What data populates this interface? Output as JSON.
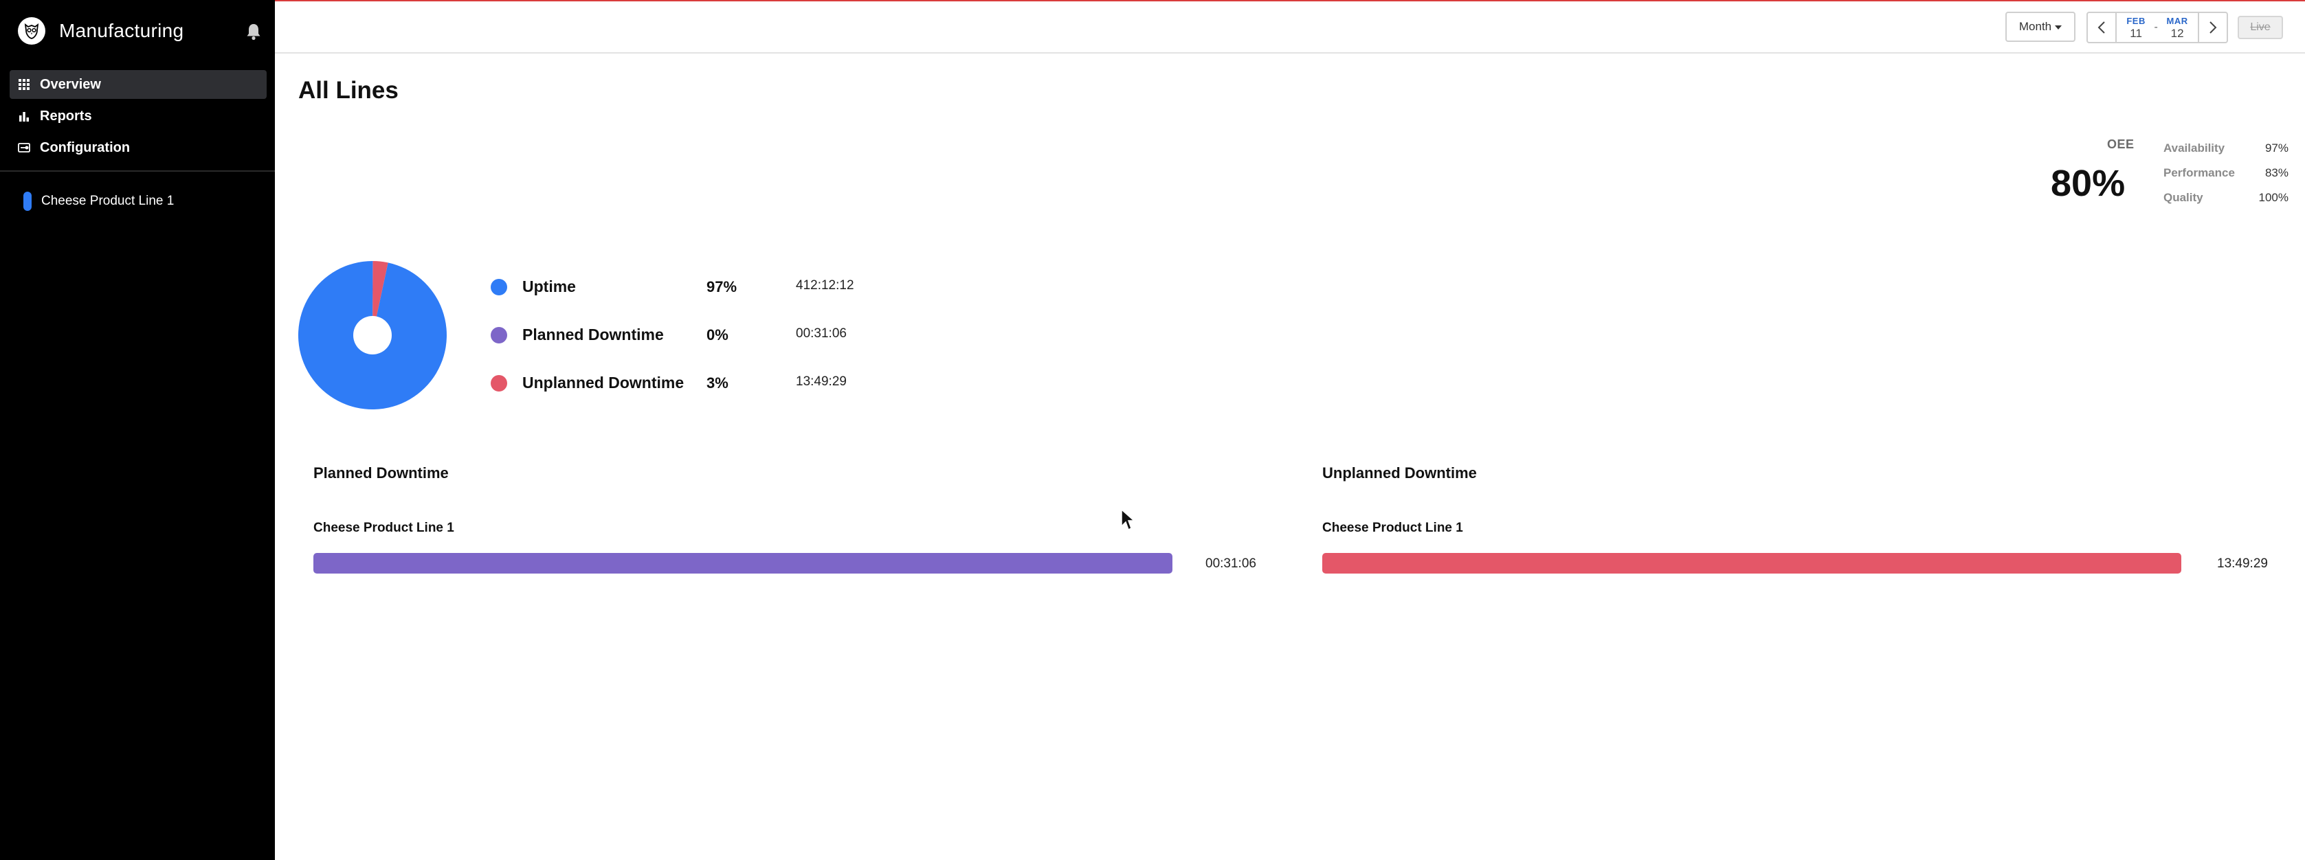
{
  "app": {
    "title": "Manufacturing"
  },
  "sidebar": {
    "nav": [
      {
        "label": "Overview",
        "icon": "grid-icon",
        "active": true
      },
      {
        "label": "Reports",
        "icon": "bar-chart-icon",
        "active": false
      },
      {
        "label": "Configuration",
        "icon": "settings-panel-icon",
        "active": false
      }
    ],
    "lines": [
      {
        "label": "Cheese Product Line 1",
        "color": "#2f7cf6"
      }
    ]
  },
  "toolbar": {
    "period_select": "Month",
    "date_from": {
      "month": "FEB",
      "day": "11"
    },
    "date_separator": "-",
    "date_to": {
      "month": "MAR",
      "day": "12"
    },
    "live_label": "Live"
  },
  "main": {
    "title": "All Lines",
    "kpis": {
      "oee_label": "OEE",
      "oee_value": "80%",
      "metrics": [
        {
          "label": "Availability",
          "value": "97%"
        },
        {
          "label": "Performance",
          "value": "83%"
        },
        {
          "label": "Quality",
          "value": "100%"
        }
      ]
    },
    "time_breakdown": [
      {
        "label": "Uptime",
        "percent": "97%",
        "duration": "412:12:12",
        "color": "#2f7cf6",
        "share": 0.9695
      },
      {
        "label": "Planned Downtime",
        "percent": "0%",
        "duration": "00:31:06",
        "color": "#7d66c8",
        "share": 0.0012
      },
      {
        "label": "Unplanned Downtime",
        "percent": "3%",
        "duration": "13:49:29",
        "color": "#e45768",
        "share": 0.0325
      }
    ],
    "planned_downtime": {
      "title": "Planned Downtime",
      "line": "Cheese Product Line 1",
      "duration": "00:31:06",
      "color": "#7d66c8",
      "fill": 1.0
    },
    "unplanned_downtime": {
      "title": "Unplanned Downtime",
      "line": "Cheese Product Line 1",
      "duration": "13:49:29",
      "color": "#e45768",
      "fill": 1.0
    }
  }
}
